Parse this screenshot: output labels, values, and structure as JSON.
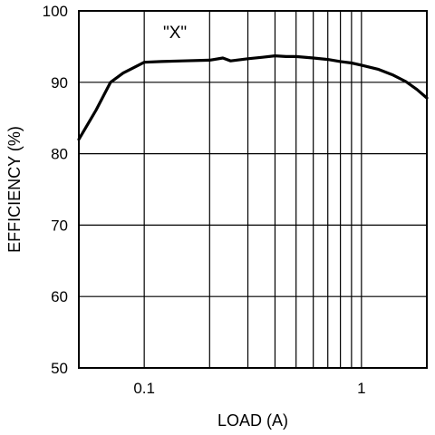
{
  "chart_data": {
    "type": "line",
    "xlabel": "LOAD (A)",
    "ylabel": "EFFICIENCY (%)",
    "xscale": "log",
    "xlim": [
      0.05,
      2
    ],
    "ylim": [
      50,
      100
    ],
    "x_tick_values": [
      0.1,
      1
    ],
    "x_tick_labels": [
      "0.1",
      "1"
    ],
    "x_minor_gridlines": [
      0.2,
      0.3,
      0.4,
      0.5,
      0.6,
      0.7,
      0.8,
      0.9
    ],
    "y_ticks": [
      50,
      60,
      70,
      80,
      90,
      100
    ],
    "y_tick_labels": [
      "50",
      "60",
      "70",
      "80",
      "90",
      "100"
    ],
    "grid": true,
    "annotation": "\"X\"",
    "series": [
      {
        "x": [
          0.05,
          0.06,
          0.07,
          0.08,
          0.09,
          0.1,
          0.12,
          0.15,
          0.2,
          0.23,
          0.25,
          0.3,
          0.35,
          0.4,
          0.45,
          0.5,
          0.6,
          0.7,
          0.8,
          0.9,
          1.0,
          1.2,
          1.4,
          1.6,
          1.8,
          2.0
        ],
        "y": [
          82,
          86.1,
          90,
          91.3,
          92.1,
          92.8,
          92.9,
          93.0,
          93.1,
          93.4,
          93.0,
          93.3,
          93.5,
          93.7,
          93.6,
          93.6,
          93.4,
          93.2,
          92.9,
          92.7,
          92.4,
          91.8,
          91.0,
          90.1,
          89.0,
          87.8
        ]
      }
    ]
  }
}
